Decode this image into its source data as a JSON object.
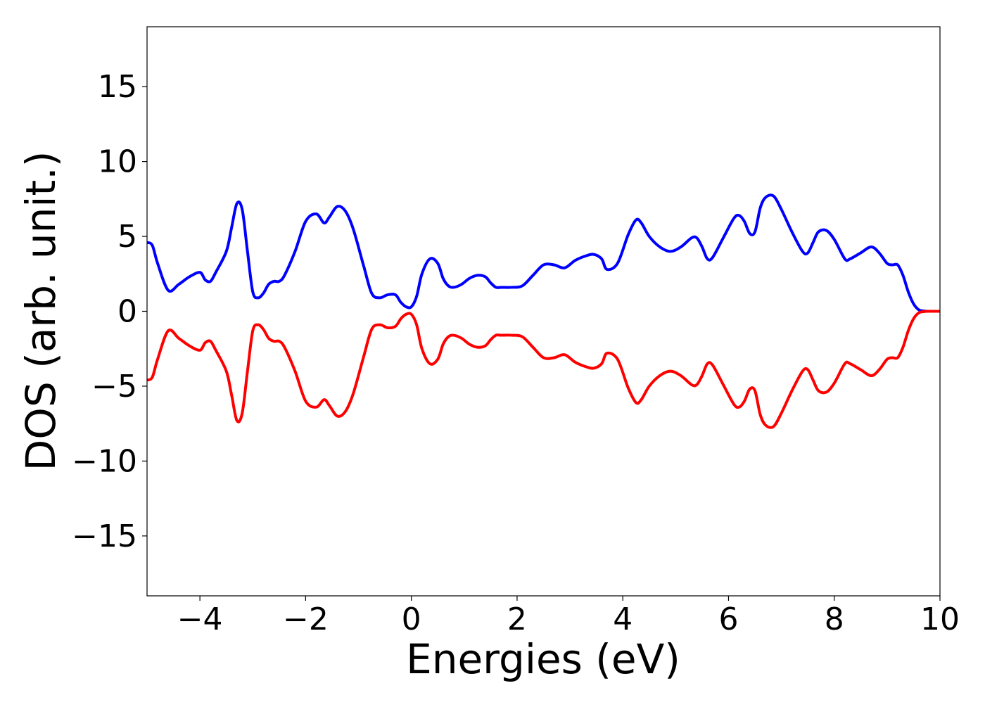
{
  "chart_data": {
    "type": "line",
    "title": "",
    "xlabel": "Energies (eV)",
    "ylabel": "DOS (arb. unit.)",
    "xlim": [
      -5,
      10
    ],
    "ylim": [
      -19,
      19
    ],
    "grid": false,
    "legend": "none",
    "xticks": [
      -4,
      -2,
      0,
      2,
      4,
      6,
      8,
      10
    ],
    "xtick_labels": [
      "−4",
      "−2",
      "0",
      "2",
      "4",
      "6",
      "8",
      "10"
    ],
    "yticks": [
      15,
      10,
      5,
      0,
      -5,
      -10,
      -15
    ],
    "ytick_labels": [
      "15",
      "10",
      "5",
      "0",
      "−5",
      "−10",
      "−15"
    ],
    "series": [
      {
        "color": "#0000ff",
        "x": [
          -5.0,
          -4.9,
          -4.8,
          -4.6,
          -4.4,
          -4.2,
          -4.0,
          -3.9,
          -3.8,
          -3.7,
          -3.5,
          -3.4,
          -3.3,
          -3.2,
          -3.1,
          -3.0,
          -2.9,
          -2.8,
          -2.7,
          -2.6,
          -2.5,
          -2.4,
          -2.2,
          -2.0,
          -1.8,
          -1.65,
          -1.55,
          -1.4,
          -1.25,
          -1.1,
          -0.9,
          -0.75,
          -0.6,
          -0.45,
          -0.3,
          -0.2,
          -0.1,
          0.0,
          0.1,
          0.2,
          0.35,
          0.5,
          0.6,
          0.7,
          0.8,
          0.95,
          1.1,
          1.25,
          1.4,
          1.5,
          1.6,
          1.7,
          1.9,
          2.1,
          2.3,
          2.5,
          2.7,
          2.9,
          3.1,
          3.3,
          3.45,
          3.6,
          3.7,
          3.9,
          4.1,
          4.25,
          4.35,
          4.5,
          4.7,
          4.9,
          5.1,
          5.3,
          5.4,
          5.5,
          5.6,
          5.7,
          5.9,
          6.1,
          6.2,
          6.3,
          6.4,
          6.5,
          6.6,
          6.7,
          6.85,
          7.0,
          7.2,
          7.4,
          7.5,
          7.6,
          7.7,
          7.85,
          8.0,
          8.2,
          8.3,
          8.5,
          8.7,
          8.85,
          9.0,
          9.1,
          9.2,
          9.3,
          9.4,
          9.5,
          9.6,
          9.7,
          9.8,
          9.9,
          10.0
        ],
        "values": [
          4.6,
          4.4,
          3.2,
          1.4,
          1.8,
          2.3,
          2.6,
          2.1,
          2.0,
          2.6,
          4.0,
          5.6,
          7.2,
          6.8,
          4.0,
          1.3,
          0.9,
          1.2,
          1.8,
          2.0,
          2.0,
          2.4,
          4.0,
          6.0,
          6.5,
          5.9,
          6.3,
          7.0,
          6.7,
          5.5,
          3.0,
          1.2,
          0.9,
          1.1,
          1.1,
          0.6,
          0.3,
          0.3,
          1.0,
          2.5,
          3.5,
          3.2,
          2.2,
          1.7,
          1.6,
          1.8,
          2.2,
          2.4,
          2.3,
          1.9,
          1.6,
          1.6,
          1.6,
          1.7,
          2.4,
          3.1,
          3.1,
          2.9,
          3.4,
          3.7,
          3.8,
          3.5,
          2.8,
          3.2,
          5.1,
          6.1,
          5.9,
          5.0,
          4.3,
          4.0,
          4.3,
          4.9,
          4.9,
          4.3,
          3.5,
          3.6,
          4.9,
          6.2,
          6.4,
          6.0,
          5.2,
          5.3,
          6.9,
          7.6,
          7.7,
          6.8,
          5.3,
          4.0,
          3.9,
          4.6,
          5.3,
          5.4,
          4.8,
          3.5,
          3.5,
          3.9,
          4.3,
          3.9,
          3.2,
          3.1,
          3.1,
          2.4,
          1.3,
          0.5,
          0.1,
          0.02,
          0.0,
          0.0,
          0.0
        ]
      },
      {
        "color": "#ff0000",
        "x": [
          -5.0,
          -4.9,
          -4.8,
          -4.6,
          -4.4,
          -4.2,
          -4.0,
          -3.9,
          -3.8,
          -3.7,
          -3.5,
          -3.4,
          -3.3,
          -3.2,
          -3.1,
          -3.0,
          -2.9,
          -2.8,
          -2.7,
          -2.6,
          -2.5,
          -2.4,
          -2.2,
          -2.0,
          -1.8,
          -1.65,
          -1.55,
          -1.4,
          -1.25,
          -1.1,
          -0.9,
          -0.75,
          -0.6,
          -0.45,
          -0.3,
          -0.2,
          -0.1,
          0.0,
          0.1,
          0.2,
          0.35,
          0.5,
          0.6,
          0.7,
          0.8,
          0.95,
          1.1,
          1.25,
          1.4,
          1.5,
          1.6,
          1.7,
          1.9,
          2.1,
          2.3,
          2.5,
          2.7,
          2.9,
          3.1,
          3.3,
          3.45,
          3.6,
          3.7,
          3.9,
          4.1,
          4.25,
          4.35,
          4.5,
          4.7,
          4.9,
          5.1,
          5.3,
          5.4,
          5.5,
          5.6,
          5.7,
          5.9,
          6.1,
          6.2,
          6.3,
          6.4,
          6.5,
          6.6,
          6.7,
          6.85,
          7.0,
          7.2,
          7.4,
          7.5,
          7.6,
          7.7,
          7.85,
          8.0,
          8.2,
          8.3,
          8.5,
          8.7,
          8.85,
          9.0,
          9.1,
          9.2,
          9.3,
          9.4,
          9.5,
          9.6,
          9.7,
          9.8,
          9.9,
          10.0
        ],
        "values": [
          -4.6,
          -4.4,
          -3.2,
          -1.3,
          -1.8,
          -2.3,
          -2.6,
          -2.1,
          -2.0,
          -2.6,
          -4.0,
          -5.6,
          -7.3,
          -6.8,
          -4.0,
          -1.3,
          -0.9,
          -1.2,
          -1.8,
          -2.0,
          -2.0,
          -2.4,
          -4.0,
          -6.0,
          -6.4,
          -5.9,
          -6.3,
          -7.0,
          -6.7,
          -5.5,
          -3.0,
          -1.2,
          -0.9,
          -1.1,
          -1.0,
          -0.5,
          -0.2,
          -0.2,
          -0.9,
          -2.5,
          -3.5,
          -3.2,
          -2.2,
          -1.7,
          -1.6,
          -1.8,
          -2.2,
          -2.4,
          -2.3,
          -1.9,
          -1.6,
          -1.6,
          -1.6,
          -1.7,
          -2.4,
          -3.1,
          -3.1,
          -2.9,
          -3.4,
          -3.7,
          -3.8,
          -3.5,
          -2.8,
          -3.2,
          -5.1,
          -6.1,
          -5.9,
          -5.0,
          -4.3,
          -4.0,
          -4.3,
          -4.9,
          -4.9,
          -4.3,
          -3.5,
          -3.6,
          -4.9,
          -6.2,
          -6.4,
          -6.0,
          -5.2,
          -5.3,
          -6.9,
          -7.6,
          -7.7,
          -6.8,
          -5.3,
          -4.0,
          -3.9,
          -4.6,
          -5.3,
          -5.4,
          -4.8,
          -3.5,
          -3.5,
          -3.9,
          -4.3,
          -3.9,
          -3.2,
          -3.1,
          -3.1,
          -2.4,
          -1.3,
          -0.5,
          -0.1,
          -0.02,
          0.0,
          0.0,
          0.0
        ]
      }
    ]
  }
}
